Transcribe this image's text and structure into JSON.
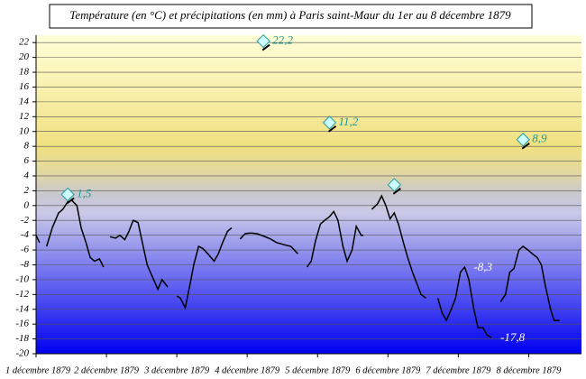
{
  "chart_data": {
    "type": "line",
    "title": "Température (en °C) et précipitations (en mm) à Paris saint-Maur du 1er au 8 décembre 1879",
    "xlim": [
      0,
      7.75
    ],
    "ylim": [
      -20,
      23
    ],
    "xticks": [
      {
        "value": 0,
        "label": "1 décembre 1879"
      },
      {
        "value": 1,
        "label": "2 décembre 1879"
      },
      {
        "value": 2,
        "label": "3 décembre 1879"
      },
      {
        "value": 3,
        "label": "4 décembre 1879"
      },
      {
        "value": 4,
        "label": "5 décembre 1879"
      },
      {
        "value": 5,
        "label": "6 décembre 1879"
      },
      {
        "value": 6,
        "label": "7 décembre 1879"
      },
      {
        "value": 7,
        "label": "8 décembre 1879"
      }
    ],
    "yticks": [
      -20,
      -18,
      -16,
      -14,
      -12,
      -10,
      -8,
      -6,
      -4,
      -2,
      0,
      2,
      4,
      6,
      8,
      10,
      12,
      14,
      16,
      18,
      20,
      22
    ],
    "grid": true,
    "series": [
      {
        "type": "line",
        "color": "#000000",
        "x": [
          0,
          0.05,
          null,
          0.15,
          0.23,
          0.32,
          0.38,
          0.45,
          0.51,
          0.58,
          0.64,
          0.71,
          0.77,
          0.83,
          0.9,
          0.96,
          null,
          1.05,
          1.13,
          1.19,
          1.26,
          1.32,
          1.38,
          1.45,
          1.51,
          1.58,
          1.67,
          1.73,
          1.79,
          1.83,
          1.87,
          null,
          2,
          2.05,
          2.12,
          2.18,
          2.24,
          2.31,
          2.37,
          2.44,
          2.53,
          2.59,
          2.65,
          2.72,
          2.78,
          null,
          2.9,
          2.97,
          3.05,
          3.14,
          3.23,
          3.33,
          3.42,
          3.53,
          3.62,
          3.72,
          null,
          3.85,
          3.91,
          3.97,
          4.04,
          4.1,
          4.17,
          4.23,
          4.29,
          4.36,
          4.42,
          4.49,
          4.55,
          4.62,
          4.65,
          null,
          4.77,
          4.85,
          4.91,
          4.97,
          5.03,
          5.09,
          5.15,
          5.22,
          5.28,
          5.35,
          5.41,
          5.47,
          5.54,
          null,
          5.71,
          5.77,
          5.83,
          5.9,
          5.96,
          6.03,
          6.09,
          6.15,
          6.22,
          6.28,
          6.35,
          6.41,
          6.47,
          null,
          6.6,
          6.67,
          6.73,
          6.79,
          6.86,
          6.92,
          6.99,
          7.05,
          7.12,
          7.18,
          7.24,
          7.31,
          7.36,
          7.44
        ],
        "values": [
          -4,
          -5,
          null,
          -5.5,
          -3,
          -1,
          -0.5,
          0.5,
          0.7,
          0,
          -3,
          -5,
          -7,
          -7.5,
          -7.2,
          -8.3,
          null,
          -4.2,
          -4.4,
          -4,
          -4.6,
          -3.5,
          -2,
          -2.3,
          -5,
          -8,
          -10,
          -11.3,
          -10,
          -10.5,
          -11,
          null,
          -12.2,
          -12.5,
          -13.8,
          -11,
          -8,
          -5.5,
          -5.8,
          -6.5,
          -7.5,
          -6.5,
          -5,
          -3.5,
          -3,
          null,
          -4.5,
          -3.8,
          -3.7,
          -3.8,
          -4.1,
          -4.5,
          -5,
          -5.3,
          -5.5,
          -6.5,
          null,
          -8.3,
          -7.5,
          -4.8,
          -2.5,
          -2,
          -1.5,
          -0.8,
          -2,
          -5.5,
          -7.5,
          -6,
          -2.8,
          -4,
          -4,
          null,
          -0.5,
          0.2,
          1.3,
          0,
          -1.8,
          -1,
          -2.5,
          -5,
          -7,
          -9,
          -10.5,
          -12,
          -12.5,
          null,
          -12.5,
          -14.5,
          -15.5,
          -14,
          -12.5,
          -9,
          -8.3,
          -10,
          -14,
          -16.5,
          -16.5,
          -17.5,
          -17.8,
          null,
          -13,
          -12,
          -9,
          -8.5,
          -6,
          -5.5,
          -6,
          -6.5,
          -7,
          -8,
          -11,
          -14,
          -15.5,
          -15.5
        ]
      },
      {
        "type": "scatter",
        "color": "#ccffff",
        "x": [
          0.45,
          3.23,
          4.17,
          5.09,
          6.92
        ],
        "values": [
          1.5,
          22.2,
          11.2,
          2.8,
          8.9
        ],
        "value_labels": [
          "1,5",
          "22,2",
          "11,2",
          null,
          "8,9"
        ]
      }
    ],
    "annotations": [
      {
        "x": 6.09,
        "value": -8.3,
        "label": "-8,3"
      },
      {
        "x": 6.47,
        "value": -17.8,
        "label": "-17,8"
      }
    ]
  }
}
